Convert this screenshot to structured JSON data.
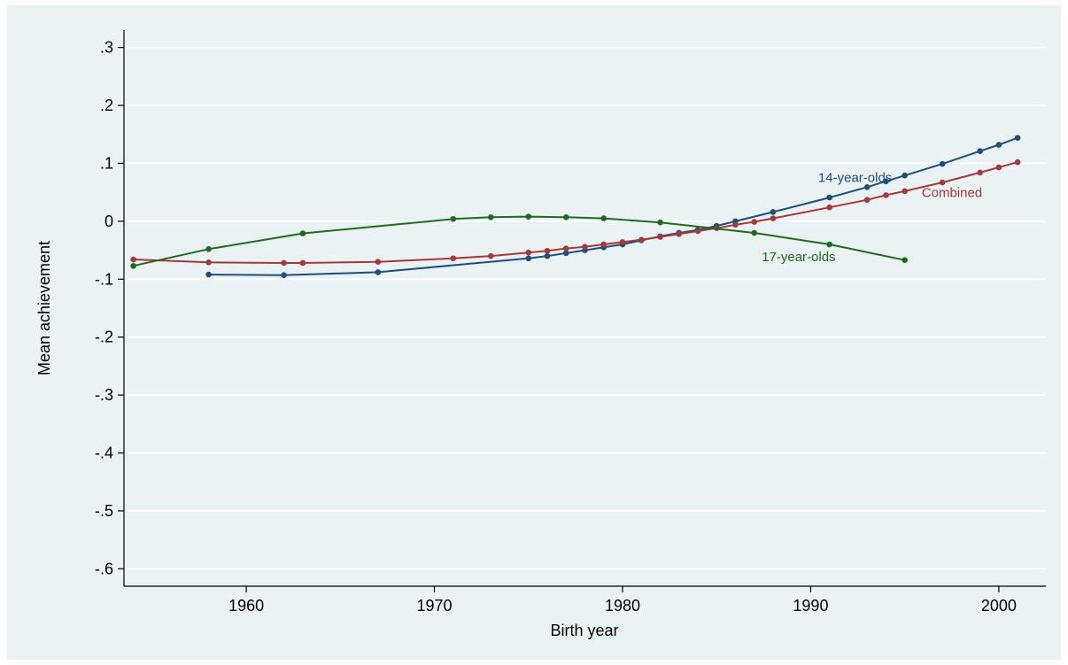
{
  "chart_data": {
    "type": "line",
    "title": "",
    "xlabel": "Birth year",
    "ylabel": "Mean achievement",
    "xlim": [
      1953.5,
      2002.5
    ],
    "ylim": [
      -0.63,
      0.33
    ],
    "xticks": [
      1960,
      1970,
      1980,
      1990,
      2000
    ],
    "yticks": [
      {
        "v": 0.3,
        "label": ".3"
      },
      {
        "v": 0.2,
        "label": ".2"
      },
      {
        "v": 0.1,
        "label": ".1"
      },
      {
        "v": 0.0,
        "label": "0"
      },
      {
        "v": -0.1,
        "label": "-.1"
      },
      {
        "v": -0.2,
        "label": "-.2"
      },
      {
        "v": -0.3,
        "label": "-.3"
      },
      {
        "v": -0.4,
        "label": "-.4"
      },
      {
        "v": -0.5,
        "label": "-.5"
      },
      {
        "v": -0.6,
        "label": "-.6"
      }
    ],
    "grid": true,
    "background": "#eaf2f3",
    "series": [
      {
        "name": "14-year-olds",
        "color": "#1f4e79",
        "label_at": {
          "x": 1990.4,
          "y": 0.068
        },
        "points": [
          [
            1958,
            -0.092
          ],
          [
            1962,
            -0.093
          ],
          [
            1967,
            -0.088
          ],
          [
            1975,
            -0.064
          ],
          [
            1976,
            -0.06
          ],
          [
            1977,
            -0.055
          ],
          [
            1978,
            -0.05
          ],
          [
            1979,
            -0.045
          ],
          [
            1980,
            -0.04
          ],
          [
            1981,
            -0.033
          ],
          [
            1982,
            -0.026
          ],
          [
            1983,
            -0.02
          ],
          [
            1984,
            -0.015
          ],
          [
            1985,
            -0.008
          ],
          [
            1986,
            0.0
          ],
          [
            1988,
            0.016
          ],
          [
            1991,
            0.041
          ],
          [
            1993,
            0.059
          ],
          [
            1994,
            0.069
          ],
          [
            1995,
            0.079
          ],
          [
            1997,
            0.099
          ],
          [
            1999,
            0.121
          ],
          [
            2000,
            0.132
          ],
          [
            2001,
            0.144
          ]
        ]
      },
      {
        "name": "Combined",
        "color": "#a5383b",
        "label_at": {
          "x": 1995.9,
          "y": 0.042
        },
        "points": [
          [
            1954,
            -0.066
          ],
          [
            1958,
            -0.071
          ],
          [
            1962,
            -0.072
          ],
          [
            1963,
            -0.072
          ],
          [
            1967,
            -0.07
          ],
          [
            1971,
            -0.064
          ],
          [
            1973,
            -0.06
          ],
          [
            1975,
            -0.054
          ],
          [
            1976,
            -0.051
          ],
          [
            1977,
            -0.047
          ],
          [
            1978,
            -0.044
          ],
          [
            1979,
            -0.04
          ],
          [
            1980,
            -0.036
          ],
          [
            1981,
            -0.032
          ],
          [
            1982,
            -0.027
          ],
          [
            1983,
            -0.022
          ],
          [
            1984,
            -0.017
          ],
          [
            1985,
            -0.012
          ],
          [
            1986,
            -0.006
          ],
          [
            1987,
            -0.001
          ],
          [
            1988,
            0.005
          ],
          [
            1991,
            0.024
          ],
          [
            1993,
            0.037
          ],
          [
            1994,
            0.045
          ],
          [
            1995,
            0.052
          ],
          [
            1997,
            0.067
          ],
          [
            1999,
            0.084
          ],
          [
            2000,
            0.093
          ],
          [
            2001,
            0.102
          ]
        ]
      },
      {
        "name": "17-year-olds",
        "color": "#1e6b1e",
        "label_at": {
          "x": 1987.4,
          "y": -0.069
        },
        "points": [
          [
            1954,
            -0.077
          ],
          [
            1958,
            -0.048
          ],
          [
            1963,
            -0.021
          ],
          [
            1971,
            0.004
          ],
          [
            1973,
            0.007
          ],
          [
            1975,
            0.008
          ],
          [
            1977,
            0.007
          ],
          [
            1979,
            0.005
          ],
          [
            1982,
            -0.002
          ],
          [
            1987,
            -0.02
          ],
          [
            1991,
            -0.04
          ],
          [
            1995,
            -0.067
          ]
        ]
      }
    ]
  }
}
